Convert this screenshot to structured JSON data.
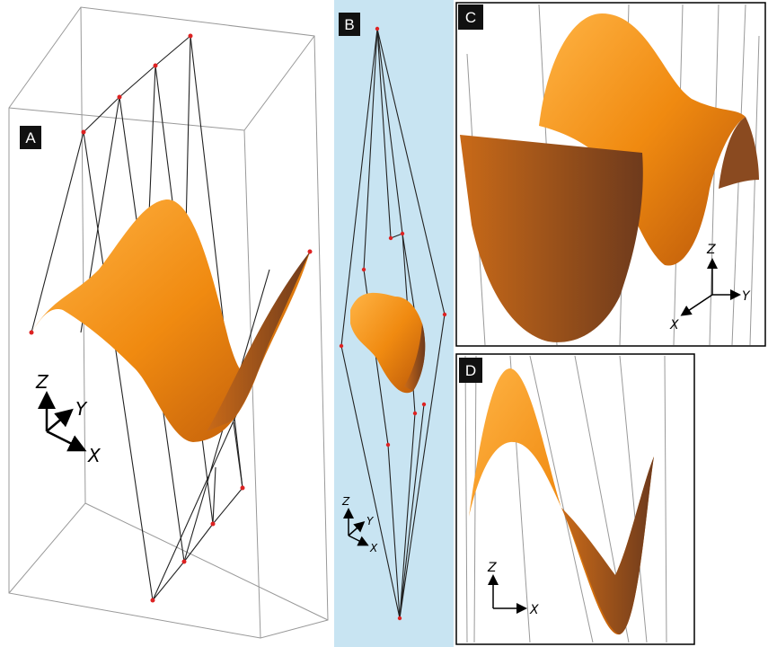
{
  "panels": [
    {
      "label": "A",
      "axes": {
        "z": "Z",
        "y": "Y",
        "x": "X"
      }
    },
    {
      "label": "B",
      "axes": {
        "z": "Z",
        "y": "Y",
        "x": "X"
      }
    },
    {
      "label": "C",
      "axes": {
        "z": "Z",
        "y": "Y",
        "x": "X"
      }
    },
    {
      "label": "D",
      "axes": {
        "z": "Z",
        "x": "X"
      }
    }
  ]
}
